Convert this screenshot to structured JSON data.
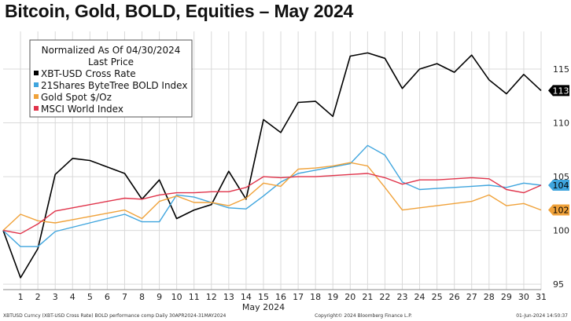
{
  "chart_data": {
    "type": "line",
    "title": "Bitcoin, Gold, BOLD, Equities – May 2024",
    "legend_header": [
      "Normalized As Of 04/30/2024",
      "Last Price"
    ],
    "xlabel": "May 2024",
    "x": [
      0,
      1,
      2,
      3,
      4,
      5,
      6,
      7,
      8,
      9,
      10,
      11,
      12,
      13,
      14,
      15,
      16,
      17,
      18,
      19,
      20,
      21,
      22,
      23,
      24,
      25,
      26,
      27,
      28,
      29,
      30,
      31
    ],
    "x_ticks": [
      1,
      2,
      3,
      4,
      5,
      6,
      7,
      8,
      9,
      10,
      11,
      12,
      13,
      14,
      15,
      16,
      17,
      18,
      19,
      20,
      21,
      22,
      23,
      24,
      25,
      26,
      27,
      28,
      29,
      30,
      31
    ],
    "ylim": [
      94.5,
      118.5
    ],
    "y_ticks": [
      95,
      100,
      105,
      110,
      115
    ],
    "grid": true,
    "legend_position": "top-left",
    "series": [
      {
        "name": "XBT-USD Cross Rate",
        "color": "#000000",
        "values": [
          100.0,
          95.6,
          98.3,
          105.2,
          106.7,
          106.5,
          105.9,
          105.3,
          102.9,
          104.7,
          101.1,
          101.9,
          102.4,
          105.5,
          102.9,
          110.3,
          109.1,
          111.9,
          112.0,
          110.6,
          116.2,
          116.5,
          116.0,
          113.2,
          115.0,
          115.5,
          114.7,
          116.3,
          114.0,
          112.7,
          114.5,
          113.0
        ]
      },
      {
        "name": "21Shares ByteTree BOLD Index",
        "color": "#3fa5de",
        "values": [
          100.0,
          98.5,
          98.5,
          99.9,
          100.3,
          100.7,
          101.1,
          101.5,
          100.8,
          100.8,
          103.3,
          103.1,
          102.6,
          102.1,
          102.0,
          103.2,
          104.5,
          105.3,
          105.6,
          105.9,
          106.2,
          107.9,
          107.0,
          104.5,
          103.8,
          103.9,
          104.0,
          104.1,
          104.2,
          104.0,
          104.4,
          104.2
        ]
      },
      {
        "name": "Gold Spot $/Oz",
        "color": "#f0a23a",
        "values": [
          100.0,
          101.5,
          100.9,
          100.7,
          101.0,
          101.3,
          101.6,
          101.9,
          101.1,
          102.7,
          103.2,
          102.6,
          102.6,
          102.3,
          103.0,
          104.4,
          104.1,
          105.7,
          105.8,
          106.0,
          106.3,
          106.0,
          104.0,
          101.9,
          102.1,
          102.3,
          102.5,
          102.7,
          103.3,
          102.3,
          102.5,
          101.9
        ]
      },
      {
        "name": "MSCI World Index",
        "color": "#e0334a",
        "values": [
          100.0,
          99.7,
          100.6,
          101.8,
          102.1,
          102.4,
          102.7,
          103.0,
          102.9,
          103.3,
          103.5,
          103.5,
          103.6,
          103.6,
          104.0,
          105.0,
          104.9,
          105.0,
          105.0,
          105.1,
          105.2,
          105.3,
          104.9,
          104.3,
          104.7,
          104.7,
          104.8,
          104.9,
          104.8,
          103.8,
          103.5,
          104.2
        ]
      }
    ],
    "last_price_tags": [
      {
        "series": "XBT-USD Cross Rate",
        "label": "113",
        "value": 113.0,
        "bg": "#000000",
        "fg": "#ffffff"
      },
      {
        "series": "21Shares ByteTree BOLD Index",
        "label": "104",
        "value": 104.2,
        "bg": "#3fa5de",
        "fg": "#000000"
      },
      {
        "series": "Gold Spot $/Oz",
        "label": "102",
        "value": 101.9,
        "bg": "#f0a23a",
        "fg": "#000000"
      }
    ]
  },
  "footer": {
    "left": "XBTUSD Curncy (XBT-USD Cross Rate) BOLD performance comp  Daily 30APR2024-31MAY2024",
    "center": "Copyright© 2024 Bloomberg Finance L.P.",
    "right": "01-Jun-2024 14:50:37"
  }
}
